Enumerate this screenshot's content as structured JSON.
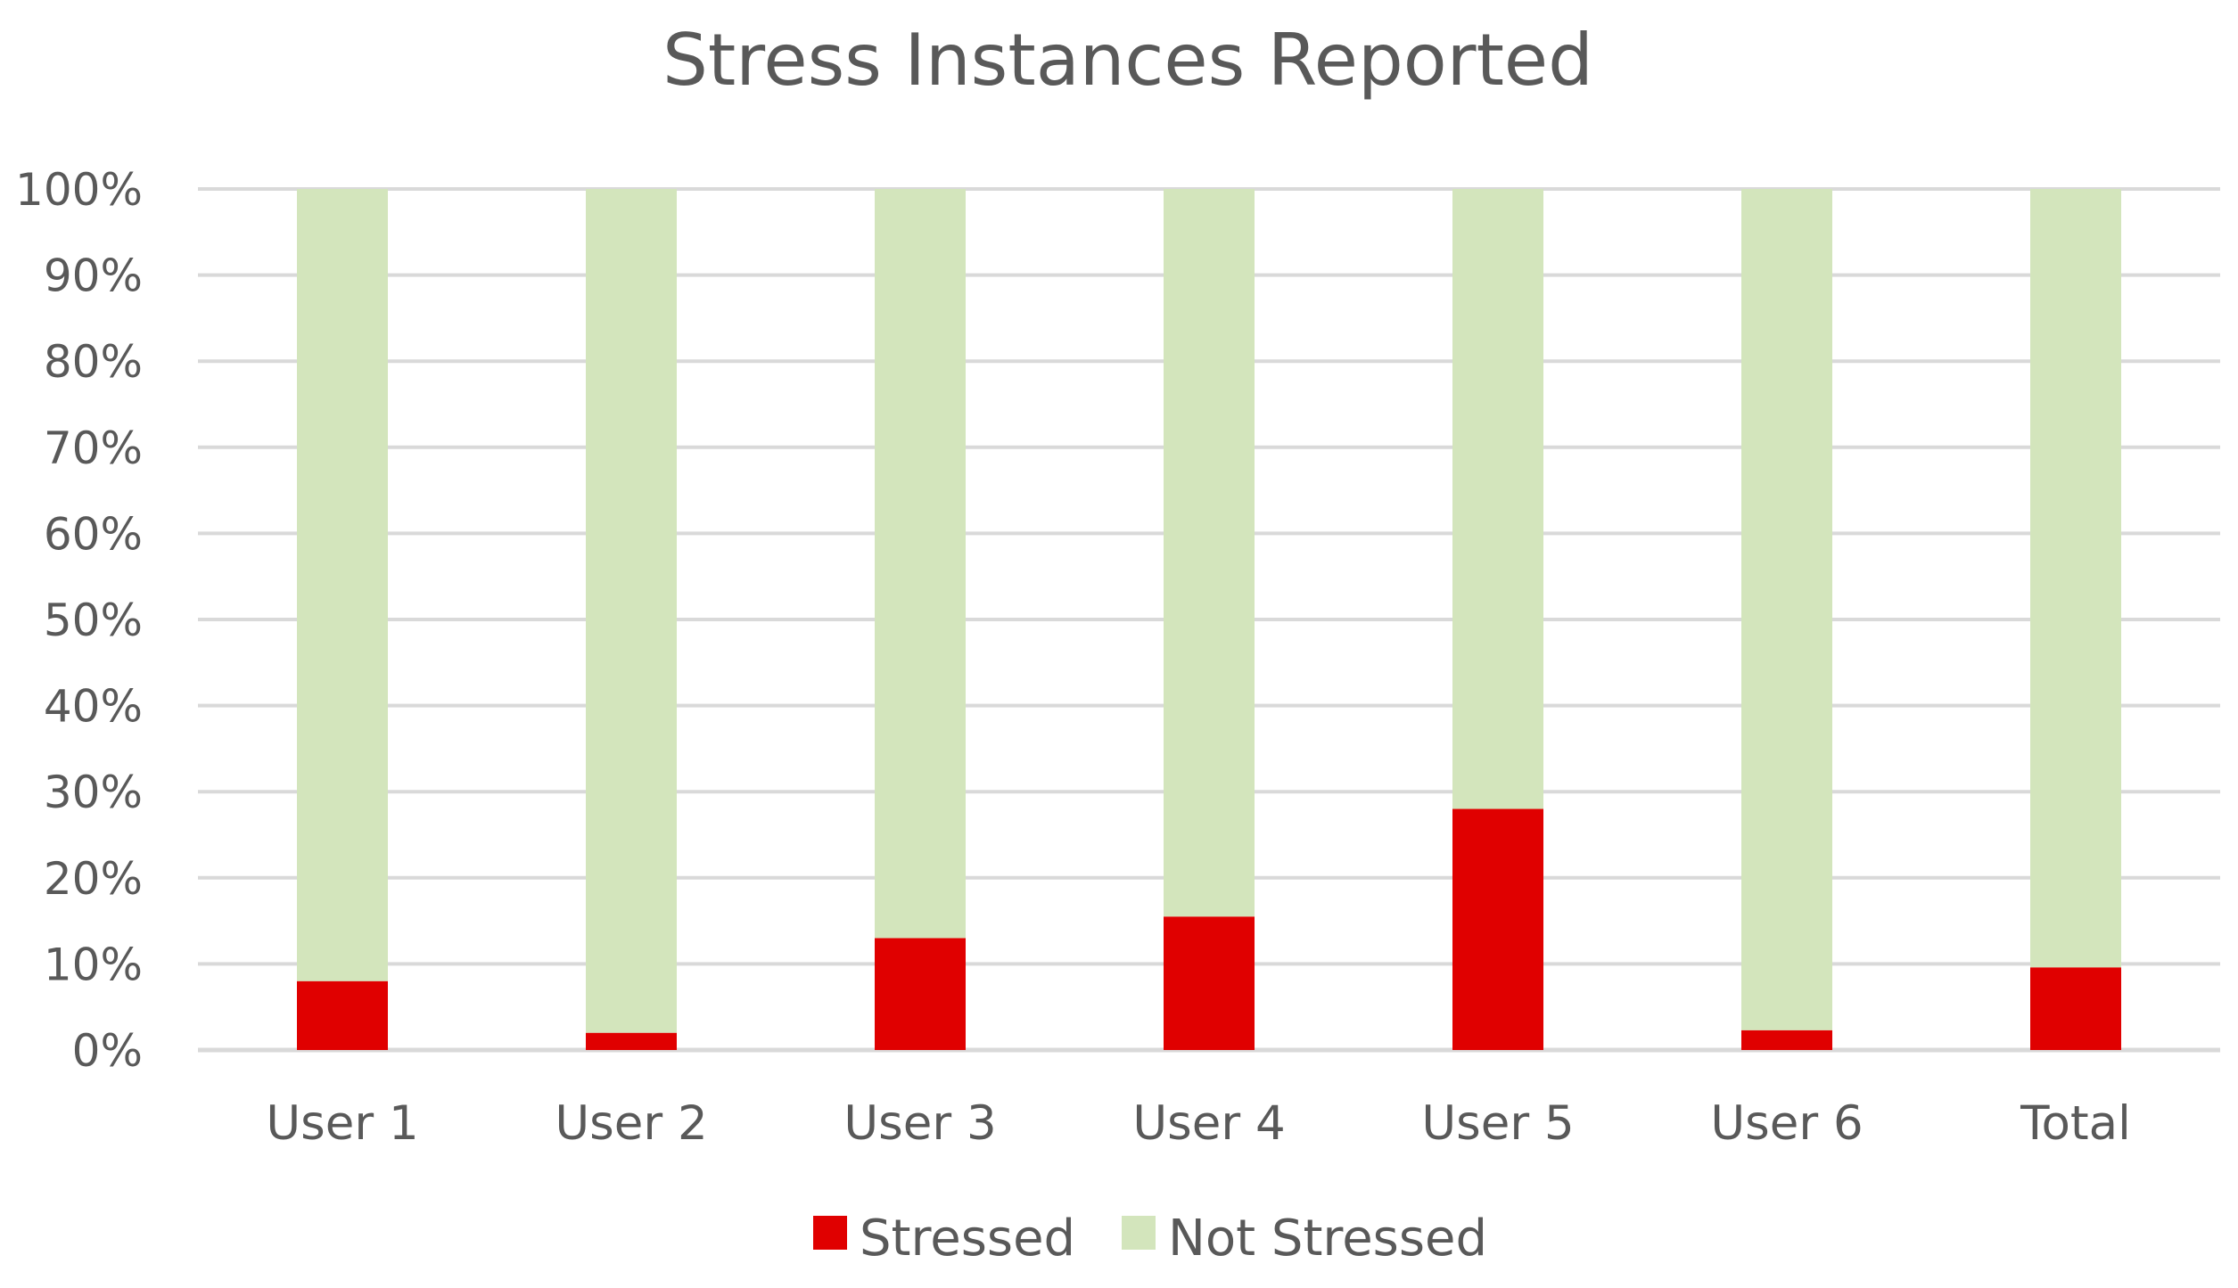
{
  "chart_data": {
    "type": "bar",
    "stacked": "100%",
    "title": "Stress Instances Reported",
    "xlabel": "",
    "ylabel": "",
    "ylim": [
      0,
      100
    ],
    "y_ticks": [
      "0%",
      "10%",
      "20%",
      "30%",
      "40%",
      "50%",
      "60%",
      "70%",
      "80%",
      "90%",
      "100%"
    ],
    "grid": true,
    "legend_position": "bottom-center",
    "categories": [
      "User 1",
      "User 2",
      "User 3",
      "User 4",
      "User 5",
      "User 6",
      "Total"
    ],
    "series": [
      {
        "name": "Stressed",
        "color": "#e00000",
        "values": [
          8,
          2,
          13,
          15.5,
          28,
          2.3,
          9.6
        ]
      },
      {
        "name": "Not Stressed",
        "color": "#d3e5bc",
        "values": [
          92,
          98,
          87,
          84.5,
          72,
          97.7,
          90.4
        ]
      }
    ],
    "colors": {
      "text": "#595959",
      "grid": "#d9d9d9"
    }
  }
}
